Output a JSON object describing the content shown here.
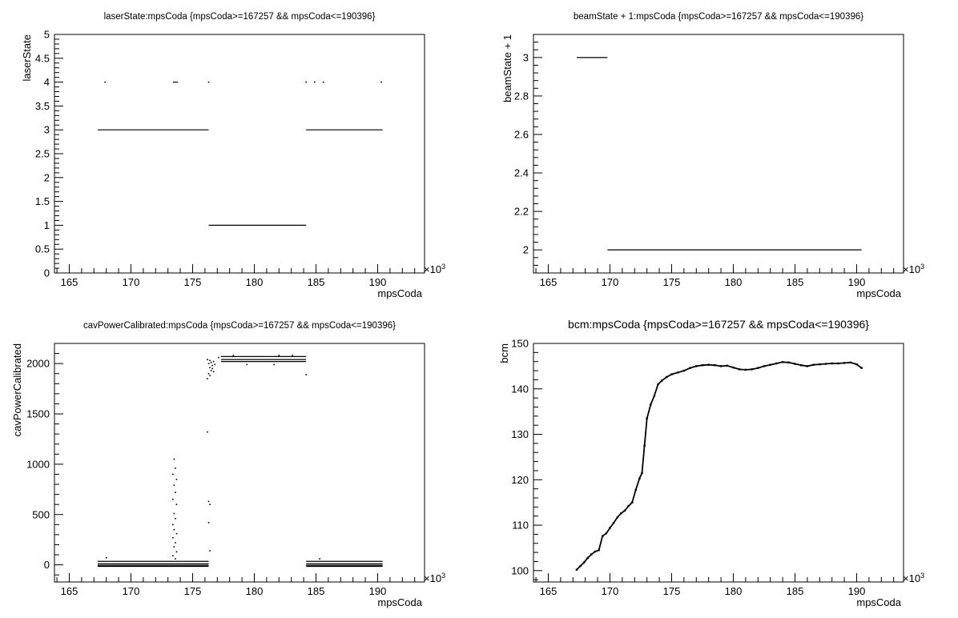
{
  "chart_data": [
    {
      "type": "scatter",
      "title": "laserState:mpsCoda {mpsCoda>=167257 && mpsCoda<=190396}",
      "xlabel": "mpsCoda",
      "ylabel": "laserState",
      "x_multiplier": "×10",
      "x_exponent": "3",
      "xlim": [
        163.8,
        193.8
      ],
      "ylim": [
        0,
        5
      ],
      "x_ticks": [
        165,
        170,
        175,
        180,
        185,
        190
      ],
      "x_tick_labels": [
        "165",
        "170",
        "175",
        "180",
        "185",
        "190"
      ],
      "y_ticks": [
        0,
        0.5,
        1,
        1.5,
        2,
        2.5,
        3,
        3.5,
        4,
        4.5,
        5
      ],
      "y_tick_labels": [
        "0",
        "0.5",
        "1",
        "1.5",
        "2",
        "2.5",
        "3",
        "3.5",
        "4",
        "4.5",
        "5"
      ],
      "grid": false,
      "segments": [
        {
          "x": [
            167.3,
            176.3
          ],
          "y": 3
        },
        {
          "x": [
            176.3,
            184.2
          ],
          "y": 1
        },
        {
          "x": [
            184.2,
            190.4
          ],
          "y": 3
        },
        {
          "x": [
            173.4,
            173.8
          ],
          "y": 4
        }
      ],
      "points": [
        [
          167.9,
          4
        ],
        [
          176.3,
          4
        ],
        [
          184.2,
          4
        ],
        [
          184.9,
          4
        ],
        [
          185.6,
          4
        ],
        [
          190.3,
          4
        ]
      ]
    },
    {
      "type": "scatter",
      "title": "beamState + 1:mpsCoda {mpsCoda>=167257 && mpsCoda<=190396}",
      "xlabel": "mpsCoda",
      "ylabel": "beamState + 1",
      "x_multiplier": "×10",
      "x_exponent": "3",
      "xlim": [
        163.8,
        193.8
      ],
      "ylim": [
        1.88,
        3.12
      ],
      "x_ticks": [
        165,
        170,
        175,
        180,
        185,
        190
      ],
      "x_tick_labels": [
        "165",
        "170",
        "175",
        "180",
        "185",
        "190"
      ],
      "y_ticks": [
        2,
        2.2,
        2.4,
        2.6,
        2.8,
        3
      ],
      "y_tick_labels": [
        "2",
        "2.2",
        "2.4",
        "2.6",
        "2.8",
        "3"
      ],
      "grid": false,
      "segments": [
        {
          "x": [
            167.3,
            169.8
          ],
          "y": 3
        },
        {
          "x": [
            169.8,
            190.4
          ],
          "y": 2
        }
      ],
      "points": []
    },
    {
      "type": "scatter",
      "title": "cavPowerCalibrated:mpsCoda {mpsCoda>=167257 && mpsCoda<=190396}",
      "xlabel": "mpsCoda",
      "ylabel": "cavPowerCalibrated",
      "x_multiplier": "×10",
      "x_exponent": "3",
      "xlim": [
        163.8,
        193.8
      ],
      "ylim": [
        -170,
        2200
      ],
      "x_ticks": [
        165,
        170,
        175,
        180,
        185,
        190
      ],
      "x_tick_labels": [
        "165",
        "170",
        "175",
        "180",
        "185",
        "190"
      ],
      "y_ticks": [
        0,
        500,
        1000,
        1500,
        2000
      ],
      "y_tick_labels": [
        "0",
        "500",
        "1000",
        "1500",
        "2000"
      ],
      "grid": false,
      "segments": [
        {
          "x": [
            167.3,
            176.3
          ],
          "y": 35
        },
        {
          "x": [
            167.3,
            176.3
          ],
          "y": 10
        },
        {
          "x": [
            167.3,
            176.3
          ],
          "y": -5
        },
        {
          "x": [
            167.3,
            176.3
          ],
          "y": -15
        },
        {
          "x": [
            177.3,
            184.2
          ],
          "y": 2070
        },
        {
          "x": [
            177.3,
            184.2
          ],
          "y": 2040
        },
        {
          "x": [
            177.3,
            184.2
          ],
          "y": 2020
        },
        {
          "x": [
            184.2,
            190.4
          ],
          "y": 35
        },
        {
          "x": [
            184.2,
            190.4
          ],
          "y": 10
        },
        {
          "x": [
            184.2,
            190.4
          ],
          "y": -5
        },
        {
          "x": [
            184.2,
            190.4
          ],
          "y": -15
        }
      ],
      "points": [
        [
          173.5,
          1050
        ],
        [
          173.6,
          960
        ],
        [
          173.4,
          900
        ],
        [
          173.7,
          850
        ],
        [
          173.5,
          790
        ],
        [
          173.6,
          720
        ],
        [
          173.4,
          650
        ],
        [
          173.7,
          600
        ],
        [
          173.5,
          510
        ],
        [
          173.6,
          460
        ],
        [
          173.4,
          400
        ],
        [
          173.5,
          350
        ],
        [
          173.7,
          310
        ],
        [
          173.4,
          270
        ],
        [
          173.6,
          220
        ],
        [
          173.5,
          180
        ],
        [
          173.7,
          130
        ],
        [
          173.4,
          90
        ],
        [
          173.6,
          60
        ],
        [
          176.2,
          1320
        ],
        [
          176.3,
          630
        ],
        [
          176.4,
          600
        ],
        [
          176.3,
          420
        ],
        [
          176.4,
          140
        ],
        [
          168.0,
          70
        ],
        [
          176.2,
          2040
        ],
        [
          176.3,
          2000
        ],
        [
          176.4,
          1960
        ],
        [
          176.5,
          1930
        ],
        [
          176.3,
          1900
        ],
        [
          176.4,
          1880
        ],
        [
          176.2,
          1850
        ],
        [
          176.6,
          1980
        ],
        [
          176.7,
          2020
        ],
        [
          176.8,
          1990
        ],
        [
          177.1,
          2060
        ],
        [
          176.5,
          2010
        ],
        [
          176.6,
          1950
        ],
        [
          176.7,
          1920
        ],
        [
          176.4,
          2030
        ],
        [
          178.3,
          2080
        ],
        [
          179.4,
          1990
        ],
        [
          181.6,
          1990
        ],
        [
          182.0,
          2080
        ],
        [
          183.1,
          2080
        ],
        [
          184.2,
          1890
        ],
        [
          185.3,
          60
        ]
      ]
    },
    {
      "type": "scatter",
      "title": "bcm:mpsCoda {mpsCoda>=167257 && mpsCoda<=190396}",
      "xlabel": "mpsCoda",
      "ylabel": "bcm",
      "x_multiplier": "×10",
      "x_exponent": "3",
      "xlim": [
        163.8,
        193.8
      ],
      "ylim": [
        97.5,
        150
      ],
      "x_ticks": [
        165,
        170,
        175,
        180,
        185,
        190
      ],
      "x_tick_labels": [
        "165",
        "170",
        "175",
        "180",
        "185",
        "190"
      ],
      "y_ticks": [
        100,
        110,
        120,
        130,
        140,
        150
      ],
      "y_tick_labels": [
        "100",
        "110",
        "120",
        "130",
        "140",
        "150"
      ],
      "grid": false,
      "segments": [],
      "curve": [
        [
          167.3,
          100.2
        ],
        [
          167.6,
          101.0
        ],
        [
          167.9,
          101.8
        ],
        [
          168.2,
          102.8
        ],
        [
          168.5,
          103.6
        ],
        [
          168.8,
          104.2
        ],
        [
          169.1,
          104.5
        ],
        [
          169.4,
          107.6
        ],
        [
          169.7,
          108.2
        ],
        [
          170.0,
          109.4
        ],
        [
          170.3,
          110.5
        ],
        [
          170.6,
          111.7
        ],
        [
          170.9,
          112.6
        ],
        [
          171.2,
          113.2
        ],
        [
          171.5,
          114.2
        ],
        [
          171.8,
          115.0
        ],
        [
          172.1,
          117.8
        ],
        [
          172.4,
          120.3
        ],
        [
          172.6,
          121.5
        ],
        [
          172.8,
          127.5
        ],
        [
          173.0,
          133.5
        ],
        [
          173.3,
          136.5
        ],
        [
          173.6,
          138.5
        ],
        [
          173.9,
          141.0
        ],
        [
          174.2,
          141.8
        ],
        [
          174.6,
          142.6
        ],
        [
          175.0,
          143.2
        ],
        [
          175.5,
          143.6
        ],
        [
          176.0,
          144.0
        ],
        [
          176.5,
          144.6
        ],
        [
          177.0,
          145.0
        ],
        [
          177.5,
          145.2
        ],
        [
          178.0,
          145.3
        ],
        [
          178.5,
          145.2
        ],
        [
          179.0,
          145.0
        ],
        [
          179.5,
          145.1
        ],
        [
          180.0,
          144.7
        ],
        [
          180.5,
          144.3
        ],
        [
          181.0,
          144.2
        ],
        [
          181.5,
          144.3
        ],
        [
          182.0,
          144.6
        ],
        [
          182.5,
          145.0
        ],
        [
          183.0,
          145.3
        ],
        [
          183.5,
          145.6
        ],
        [
          184.0,
          145.9
        ],
        [
          184.5,
          145.8
        ],
        [
          185.0,
          145.5
        ],
        [
          185.5,
          145.2
        ],
        [
          186.0,
          145.0
        ],
        [
          186.5,
          145.3
        ],
        [
          187.0,
          145.4
        ],
        [
          187.5,
          145.5
        ],
        [
          188.0,
          145.6
        ],
        [
          188.5,
          145.6
        ],
        [
          189.0,
          145.7
        ],
        [
          189.5,
          145.8
        ],
        [
          190.0,
          145.4
        ],
        [
          190.4,
          144.6
        ]
      ]
    }
  ]
}
